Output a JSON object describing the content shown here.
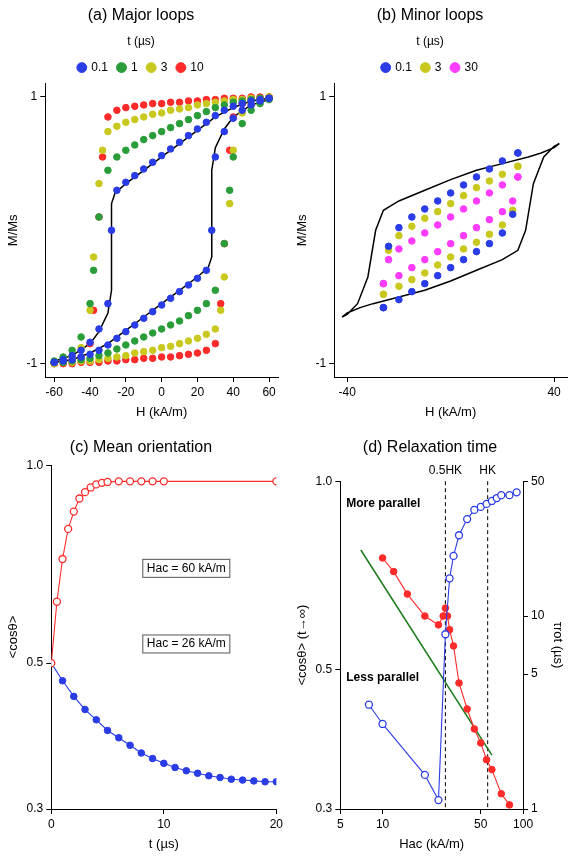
{
  "chart_data": [
    {
      "type": "scatter",
      "title": "(a) Major loops",
      "x_label": "H (kA/m)",
      "y_label": "M/Ms",
      "xlim": [
        -65,
        65
      ],
      "xticks": [
        -60,
        -40,
        -20,
        0,
        20,
        40,
        60
      ],
      "ylim": [
        -1.1,
        1.1
      ],
      "yticks": [
        -1,
        1
      ],
      "grid": false,
      "legend": "top",
      "legend_title": "t (µs)",
      "series": [
        {
          "name": "0.1",
          "color": "#2a3ce6",
          "marker": "circle",
          "line_style": "none",
          "x": [
            60,
            55,
            50,
            45,
            40,
            35,
            30,
            25,
            20,
            15,
            10,
            5,
            0,
            -5,
            -10,
            -15,
            -20,
            -25,
            -28,
            -30,
            -35,
            -40,
            -45,
            -50,
            -55,
            -60,
            -60,
            -55,
            -50,
            -45,
            -40,
            -35,
            -30,
            -25,
            -20,
            -15,
            -10,
            -5,
            0,
            5,
            10,
            15,
            20,
            25,
            28,
            30,
            35,
            40,
            45,
            50,
            55,
            60
          ],
          "values": [
            0.99,
            0.98,
            0.97,
            0.95,
            0.93,
            0.9,
            0.86,
            0.81,
            0.76,
            0.71,
            0.66,
            0.61,
            0.56,
            0.51,
            0.46,
            0.41,
            0.36,
            0.3,
            0.0,
            -0.55,
            -0.74,
            -0.84,
            -0.9,
            -0.94,
            -0.97,
            -0.99,
            -0.99,
            -0.98,
            -0.97,
            -0.95,
            -0.93,
            -0.9,
            -0.86,
            -0.81,
            -0.76,
            -0.71,
            -0.66,
            -0.61,
            -0.56,
            -0.51,
            -0.46,
            -0.41,
            -0.36,
            -0.3,
            0.0,
            0.55,
            0.74,
            0.84,
            0.9,
            0.94,
            0.97,
            0.99
          ]
        },
        {
          "name": "1",
          "color": "#2a9d3a",
          "marker": "circle",
          "line_style": "none",
          "x": [
            60,
            55,
            50,
            45,
            40,
            35,
            30,
            25,
            20,
            15,
            10,
            5,
            0,
            -5,
            -10,
            -15,
            -20,
            -25,
            -30,
            -35,
            -38,
            -40,
            -45,
            -50,
            -55,
            -60,
            -60,
            -55,
            -50,
            -45,
            -40,
            -35,
            -30,
            -25,
            -20,
            -15,
            -10,
            -5,
            0,
            5,
            10,
            15,
            20,
            25,
            30,
            35,
            38,
            40,
            45,
            50,
            55,
            60
          ],
          "values": [
            0.99,
            0.99,
            0.98,
            0.97,
            0.96,
            0.94,
            0.92,
            0.89,
            0.86,
            0.83,
            0.8,
            0.77,
            0.74,
            0.71,
            0.68,
            0.64,
            0.6,
            0.55,
            0.45,
            0.1,
            -0.3,
            -0.55,
            -0.8,
            -0.9,
            -0.95,
            -0.98,
            -0.99,
            -0.99,
            -0.98,
            -0.97,
            -0.96,
            -0.94,
            -0.92,
            -0.89,
            -0.86,
            -0.83,
            -0.8,
            -0.77,
            -0.74,
            -0.71,
            -0.68,
            -0.64,
            -0.6,
            -0.55,
            -0.45,
            -0.1,
            0.3,
            0.55,
            0.8,
            0.9,
            0.95,
            0.98
          ]
        },
        {
          "name": "3",
          "color": "#c8c81e",
          "marker": "circle",
          "line_style": "none",
          "x": [
            60,
            55,
            50,
            45,
            40,
            35,
            30,
            25,
            20,
            15,
            10,
            5,
            0,
            -5,
            -10,
            -15,
            -20,
            -25,
            -30,
            -33,
            -35,
            -38,
            -40,
            -45,
            -50,
            -55,
            -60,
            -60,
            -55,
            -50,
            -45,
            -40,
            -35,
            -30,
            -25,
            -20,
            -15,
            -10,
            -5,
            0,
            5,
            10,
            15,
            20,
            25,
            30,
            33,
            35,
            38,
            40,
            45,
            50,
            55,
            60
          ],
          "values": [
            1,
            0.99,
            0.99,
            0.98,
            0.98,
            0.97,
            0.96,
            0.95,
            0.94,
            0.92,
            0.91,
            0.9,
            0.88,
            0.87,
            0.85,
            0.83,
            0.81,
            0.78,
            0.74,
            0.6,
            0.35,
            -0.2,
            -0.6,
            -0.88,
            -0.95,
            -0.98,
            -0.99,
            -1,
            -0.99,
            -0.99,
            -0.98,
            -0.98,
            -0.97,
            -0.96,
            -0.95,
            -0.94,
            -0.92,
            -0.91,
            -0.9,
            -0.88,
            -0.87,
            -0.85,
            -0.83,
            -0.81,
            -0.78,
            -0.74,
            -0.6,
            -0.35,
            0.2,
            0.6,
            0.88,
            0.95,
            0.98,
            0.99
          ]
        },
        {
          "name": "10",
          "color": "#ff2a2a",
          "marker": "circle",
          "line_style": "none",
          "x": [
            60,
            55,
            50,
            45,
            40,
            35,
            30,
            25,
            20,
            15,
            10,
            5,
            0,
            -5,
            -10,
            -15,
            -20,
            -25,
            -30,
            -33,
            -35,
            -38,
            -40,
            -45,
            -50,
            -55,
            -60,
            -60,
            -55,
            -50,
            -45,
            -40,
            -35,
            -30,
            -25,
            -20,
            -15,
            -10,
            -5,
            0,
            5,
            10,
            15,
            20,
            25,
            30,
            33,
            35,
            38,
            40,
            45,
            50,
            55,
            60
          ],
          "values": [
            1,
            1,
            1,
            0.99,
            0.99,
            0.99,
            0.98,
            0.98,
            0.97,
            0.97,
            0.96,
            0.96,
            0.95,
            0.95,
            0.94,
            0.93,
            0.92,
            0.9,
            0.85,
            0.55,
            0.1,
            -0.6,
            -0.85,
            -0.95,
            -0.98,
            -0.99,
            -1,
            -1,
            -1,
            -1,
            -0.99,
            -0.99,
            -0.99,
            -0.98,
            -0.98,
            -0.97,
            -0.97,
            -0.96,
            -0.96,
            -0.95,
            -0.95,
            -0.94,
            -0.93,
            -0.92,
            -0.9,
            -0.85,
            -0.55,
            -0.1,
            0.6,
            0.85,
            0.95,
            0.98,
            0.99,
            1
          ]
        },
        {
          "name": null,
          "color": "#000000",
          "marker": "none",
          "line_style": "solid",
          "x": [
            60,
            50,
            40,
            30,
            20,
            10,
            0,
            -10,
            -20,
            -26,
            -28,
            -28,
            -30,
            -35,
            -40,
            -50,
            -60,
            -60,
            -50,
            -40,
            -30,
            -20,
            -10,
            0,
            10,
            20,
            26,
            28,
            28,
            30,
            35,
            40,
            50,
            60
          ],
          "values": [
            0.99,
            0.97,
            0.92,
            0.85,
            0.75,
            0.65,
            0.55,
            0.45,
            0.35,
            0.28,
            0.2,
            -0.45,
            -0.62,
            -0.76,
            -0.85,
            -0.94,
            -0.98,
            -0.99,
            -0.97,
            -0.92,
            -0.85,
            -0.75,
            -0.65,
            -0.55,
            -0.45,
            -0.35,
            -0.28,
            -0.2,
            0.45,
            0.62,
            0.76,
            0.85,
            0.94,
            0.98
          ]
        }
      ]
    },
    {
      "type": "scatter",
      "title": "(b) Minor loops",
      "x_label": "H (kA/m)",
      "y_label": "M/Ms",
      "xlim": [
        -45,
        45
      ],
      "xticks": [
        -40,
        40
      ],
      "ylim": [
        -1.1,
        1.1
      ],
      "yticks": [
        -1,
        1
      ],
      "grid": false,
      "legend": "top",
      "legend_title": "t (µs)",
      "series": [
        {
          "name": "0.1",
          "color": "#2a3ce6",
          "marker": "circle",
          "line_style": "none",
          "x": [
            26,
            20,
            15,
            10,
            5,
            0,
            -5,
            -10,
            -15,
            -20,
            -24,
            -26,
            -26,
            -20,
            -15,
            -10,
            -5,
            0,
            5,
            10,
            15,
            20,
            24,
            26
          ],
          "values": [
            0.58,
            0.52,
            0.46,
            0.4,
            0.34,
            0.28,
            0.22,
            0.16,
            0.1,
            0.02,
            -0.12,
            -0.58,
            -0.58,
            -0.52,
            -0.46,
            -0.4,
            -0.34,
            -0.28,
            -0.22,
            -0.16,
            -0.1,
            -0.02,
            0.12,
            0.58
          ]
        },
        {
          "name": "3",
          "color": "#c8c81e",
          "marker": "circle",
          "line_style": "none",
          "x": [
            26,
            20,
            15,
            10,
            5,
            0,
            -5,
            -10,
            -15,
            -20,
            -24,
            -26,
            -26,
            -20,
            -15,
            -10,
            -5,
            0,
            5,
            10,
            15,
            20,
            24,
            26
          ],
          "values": [
            0.48,
            0.42,
            0.37,
            0.32,
            0.26,
            0.2,
            0.14,
            0.09,
            0.03,
            -0.04,
            -0.15,
            -0.48,
            -0.48,
            -0.42,
            -0.37,
            -0.32,
            -0.26,
            -0.2,
            -0.14,
            -0.09,
            -0.03,
            0.04,
            0.15,
            0.48
          ]
        },
        {
          "name": "30",
          "color": "#ff3cff",
          "marker": "circle",
          "line_style": "none",
          "x": [
            26,
            20,
            15,
            10,
            5,
            0,
            -5,
            -10,
            -15,
            -20,
            -24,
            -26,
            -26,
            -20,
            -15,
            -10,
            -5,
            0,
            5,
            10,
            15,
            20,
            24,
            26
          ],
          "values": [
            0.4,
            0.34,
            0.28,
            0.22,
            0.16,
            0.1,
            0.04,
            -0.02,
            -0.08,
            -0.14,
            -0.22,
            -0.4,
            -0.4,
            -0.34,
            -0.28,
            -0.22,
            -0.16,
            -0.1,
            -0.04,
            0.02,
            0.08,
            0.14,
            0.22,
            0.4
          ]
        },
        {
          "name": null,
          "color": "#000000",
          "marker": "none",
          "line_style": "solid",
          "x": [
            42,
            40,
            35,
            30,
            20,
            10,
            0,
            -10,
            -20,
            -26,
            -29,
            -32,
            -36,
            -40,
            -42,
            -42,
            -40,
            -35,
            -30,
            -20,
            -10,
            0,
            10,
            20,
            26,
            29,
            32,
            36,
            40,
            42
          ],
          "values": [
            0.65,
            0.62,
            0.58,
            0.55,
            0.5,
            0.45,
            0.38,
            0.3,
            0.22,
            0.15,
            0.0,
            -0.35,
            -0.55,
            -0.63,
            -0.65,
            -0.65,
            -0.62,
            -0.58,
            -0.55,
            -0.5,
            -0.45,
            -0.38,
            -0.3,
            -0.22,
            -0.15,
            0.0,
            0.35,
            0.55,
            0.63,
            0.65
          ]
        }
      ]
    },
    {
      "type": "line",
      "title": "(c) Mean orientation",
      "x_label": "t (µs)",
      "y_label": "<cosθ>",
      "log": "y",
      "xlim": [
        0,
        20
      ],
      "xticks": [
        0,
        10,
        20
      ],
      "ylim": [
        0.3,
        1.0
      ],
      "yticks": [
        0.3,
        0.5,
        {
          "value": 1,
          "label": "1.0"
        }
      ],
      "grid": false,
      "annotations": [
        "Hac = 60 kA/m",
        "Hac = 26 kA/m"
      ],
      "series": [
        {
          "name": null,
          "color": "#ff2a2a",
          "marker": "open_circle",
          "line_style": "solid",
          "x": [
            0,
            0.5,
            1,
            1.5,
            2,
            2.5,
            3,
            3.5,
            4,
            4.5,
            5,
            6,
            7,
            8,
            9,
            10,
            20
          ],
          "values": [
            0.5,
            0.62,
            0.72,
            0.8,
            0.85,
            0.89,
            0.91,
            0.925,
            0.935,
            0.94,
            0.943,
            0.945,
            0.945,
            0.945,
            0.945,
            0.945,
            0.945
          ]
        },
        {
          "name": null,
          "color": "#2a3ce6",
          "marker": "circle",
          "line_style": "solid",
          "x": [
            0,
            1,
            2,
            3,
            4,
            5,
            6,
            7,
            8,
            9,
            10,
            11,
            12,
            13,
            14,
            15,
            16,
            17,
            18,
            19,
            20
          ],
          "values": [
            0.5,
            0.47,
            0.445,
            0.425,
            0.41,
            0.395,
            0.385,
            0.375,
            0.365,
            0.358,
            0.352,
            0.347,
            0.343,
            0.34,
            0.337,
            0.335,
            0.333,
            0.332,
            0.331,
            0.33,
            0.33
          ]
        }
      ]
    },
    {
      "type": "line",
      "title": "(d) Relaxation time",
      "x_label": "Hac (kA/m)",
      "y_label": "<cosθ> (t→∞)",
      "y2_label": "τrot (µs)",
      "log": true,
      "xlim": [
        5,
        100
      ],
      "xticks": [
        5,
        10,
        50,
        100
      ],
      "ylim": [
        0.3,
        1.0
      ],
      "yticks": [
        0.3,
        0.5,
        {
          "value": 1,
          "label": "1.0"
        }
      ],
      "y2lim": [
        1,
        50
      ],
      "y2ticks": [
        1,
        5,
        10,
        50
      ],
      "grid": false,
      "vlines": [
        {
          "value": 28,
          "label": "0.5HK"
        },
        {
          "value": 56,
          "label": "HK"
        }
      ],
      "annotations": [
        "More parallel",
        "Less parallel"
      ],
      "series": [
        {
          "name": null,
          "color": "#2a3ce6",
          "marker": "open_circle",
          "line_style": "solid",
          "x": [
            8,
            10,
            20,
            25,
            28,
            30,
            32,
            35,
            40,
            45,
            50,
            55,
            60,
            65,
            70,
            80,
            90
          ],
          "values": [
            0.44,
            0.41,
            0.34,
            0.31,
            0.57,
            0.7,
            0.76,
            0.82,
            0.87,
            0.9,
            0.91,
            0.92,
            0.93,
            0.94,
            0.95,
            0.95,
            0.96
          ]
        },
        {
          "name": null,
          "color": "#ff2a2a",
          "marker": "circle",
          "line_style": "solid",
          "axis": "y2",
          "x": [
            10,
            12,
            15,
            20,
            25,
            27,
            28,
            29,
            30,
            32,
            35,
            40,
            45,
            50,
            55,
            60,
            70,
            80
          ],
          "values": [
            20,
            17,
            13,
            10,
            9,
            10,
            11,
            10,
            8.5,
            7,
            4.5,
            3.3,
            2.6,
            2.2,
            1.8,
            1.6,
            1.2,
            1.05
          ]
        },
        {
          "name": null,
          "color": "#1a7a1a",
          "marker": "none",
          "line_style": "solid",
          "axis": "y2",
          "x": [
            7,
            60
          ],
          "values": [
            22,
            1.9
          ]
        }
      ]
    }
  ]
}
